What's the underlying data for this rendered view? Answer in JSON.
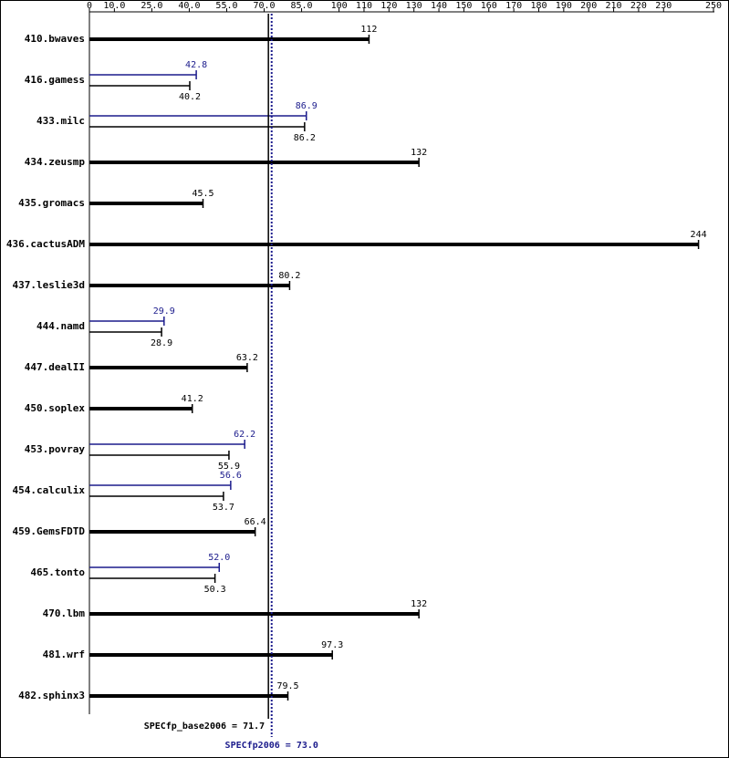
{
  "chart_data": {
    "type": "bar",
    "categories": [
      "410.bwaves",
      "416.gamess",
      "433.milc",
      "434.zeusmp",
      "435.gromacs",
      "436.cactusADM",
      "437.leslie3d",
      "444.namd",
      "447.dealII",
      "450.soplex",
      "453.povray",
      "454.calculix",
      "459.GemsFDTD",
      "465.tonto",
      "470.lbm",
      "481.wrf",
      "482.sphinx3"
    ],
    "series": [
      {
        "color": "#000000",
        "values": [
          112,
          40.2,
          86.2,
          132,
          45.5,
          244,
          80.2,
          28.9,
          63.2,
          41.2,
          55.9,
          53.7,
          66.4,
          50.3,
          132,
          97.3,
          79.5
        ]
      },
      {
        "color": "#1c1c8c",
        "values": [
          null,
          42.8,
          86.9,
          null,
          null,
          null,
          null,
          29.9,
          null,
          null,
          62.2,
          56.6,
          null,
          52,
          null,
          null,
          null
        ],
        "value_labels": [
          null,
          "42.8",
          "86.9",
          null,
          null,
          null,
          null,
          "29.9",
          null,
          null,
          "62.2",
          "56.6",
          null,
          "52.0",
          null,
          null,
          null
        ]
      }
    ],
    "xlim": [
      0,
      250
    ],
    "xticks": [
      0,
      {
        "value": 10,
        "label": "10.0"
      },
      {
        "value": 25,
        "label": "25.0"
      },
      {
        "value": 40,
        "label": "40.0"
      },
      {
        "value": 55,
        "label": "55.0"
      },
      {
        "value": 70,
        "label": "70.0"
      },
      {
        "value": 85,
        "label": "85.0"
      },
      100,
      110,
      120,
      130,
      140,
      150,
      160,
      170,
      180,
      190,
      200,
      210,
      220,
      230,
      250
    ],
    "reference_lines": [
      {
        "value": 71.7,
        "label": "SPECfp_base2006 = 71.7",
        "color": "#000000",
        "style": "solid"
      },
      {
        "value": 73.0,
        "label": "SPECfp2006 = 73.0",
        "color": "#1c1c8c",
        "style": "dotted"
      }
    ]
  }
}
